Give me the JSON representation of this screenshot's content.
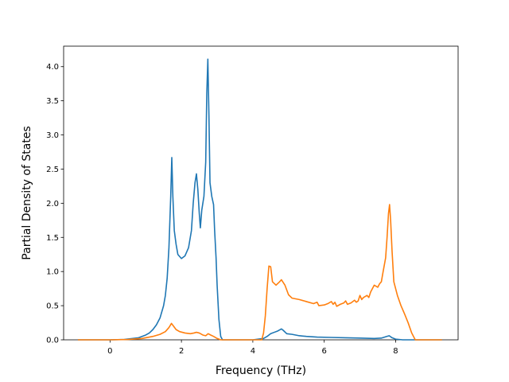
{
  "chart_data": {
    "type": "line",
    "title": "",
    "xlabel": "Frequency (THz)",
    "ylabel": "Partial Density of States",
    "xlim": [
      -1.3,
      9.75
    ],
    "ylim": [
      0,
      4.3
    ],
    "x_ticks": [
      0,
      2,
      4,
      6,
      8
    ],
    "y_ticks": [
      0.0,
      0.5,
      1.0,
      1.5,
      2.0,
      2.5,
      3.0,
      3.5,
      4.0
    ],
    "x_tick_labels": [
      "0",
      "2",
      "4",
      "6",
      "8"
    ],
    "y_tick_labels": [
      "0.0",
      "0.5",
      "1.0",
      "1.5",
      "2.0",
      "2.5",
      "3.0",
      "3.5",
      "4.0"
    ],
    "grid": false,
    "legend": "none",
    "series": [
      {
        "color": "#1f77b4",
        "points": [
          [
            -0.9,
            0
          ],
          [
            0,
            0
          ],
          [
            0.4,
            0.005
          ],
          [
            0.8,
            0.03
          ],
          [
            1.0,
            0.07
          ],
          [
            1.1,
            0.1
          ],
          [
            1.2,
            0.15
          ],
          [
            1.3,
            0.22
          ],
          [
            1.4,
            0.32
          ],
          [
            1.5,
            0.5
          ],
          [
            1.55,
            0.65
          ],
          [
            1.6,
            0.9
          ],
          [
            1.65,
            1.35
          ],
          [
            1.7,
            2.1
          ],
          [
            1.73,
            2.67
          ],
          [
            1.76,
            2.1
          ],
          [
            1.8,
            1.6
          ],
          [
            1.85,
            1.4
          ],
          [
            1.9,
            1.25
          ],
          [
            2.0,
            1.19
          ],
          [
            2.1,
            1.23
          ],
          [
            2.2,
            1.35
          ],
          [
            2.28,
            1.6
          ],
          [
            2.33,
            2.0
          ],
          [
            2.38,
            2.3
          ],
          [
            2.42,
            2.43
          ],
          [
            2.46,
            2.2
          ],
          [
            2.5,
            1.85
          ],
          [
            2.53,
            1.64
          ],
          [
            2.57,
            1.9
          ],
          [
            2.63,
            2.1
          ],
          [
            2.68,
            2.6
          ],
          [
            2.71,
            3.6
          ],
          [
            2.74,
            4.11
          ],
          [
            2.77,
            3.3
          ],
          [
            2.8,
            2.3
          ],
          [
            2.85,
            2.1
          ],
          [
            2.9,
            1.98
          ],
          [
            2.93,
            1.6
          ],
          [
            2.97,
            1.2
          ],
          [
            3.0,
            0.8
          ],
          [
            3.05,
            0.3
          ],
          [
            3.1,
            0.05
          ],
          [
            3.15,
            0
          ],
          [
            4.0,
            0
          ],
          [
            4.3,
            0.02
          ],
          [
            4.4,
            0.05
          ],
          [
            4.5,
            0.09
          ],
          [
            4.6,
            0.11
          ],
          [
            4.7,
            0.13
          ],
          [
            4.8,
            0.16
          ],
          [
            4.85,
            0.14
          ],
          [
            4.95,
            0.09
          ],
          [
            5.1,
            0.08
          ],
          [
            5.3,
            0.06
          ],
          [
            5.5,
            0.05
          ],
          [
            5.8,
            0.04
          ],
          [
            6.2,
            0.035
          ],
          [
            6.6,
            0.03
          ],
          [
            7.0,
            0.025
          ],
          [
            7.4,
            0.02
          ],
          [
            7.6,
            0.025
          ],
          [
            7.75,
            0.05
          ],
          [
            7.82,
            0.06
          ],
          [
            7.9,
            0.03
          ],
          [
            8.0,
            0.01
          ],
          [
            8.2,
            0
          ],
          [
            8.5,
            0
          ],
          [
            9.3,
            0
          ]
        ]
      },
      {
        "color": "#ff7f0e",
        "points": [
          [
            -0.9,
            0
          ],
          [
            0,
            0
          ],
          [
            0.5,
            0.005
          ],
          [
            0.9,
            0.02
          ],
          [
            1.2,
            0.05
          ],
          [
            1.4,
            0.08
          ],
          [
            1.55,
            0.12
          ],
          [
            1.65,
            0.18
          ],
          [
            1.72,
            0.24
          ],
          [
            1.78,
            0.2
          ],
          [
            1.85,
            0.15
          ],
          [
            1.95,
            0.12
          ],
          [
            2.1,
            0.1
          ],
          [
            2.25,
            0.09
          ],
          [
            2.35,
            0.1
          ],
          [
            2.42,
            0.11
          ],
          [
            2.5,
            0.1
          ],
          [
            2.6,
            0.07
          ],
          [
            2.68,
            0.06
          ],
          [
            2.75,
            0.09
          ],
          [
            2.82,
            0.07
          ],
          [
            2.9,
            0.05
          ],
          [
            3.0,
            0.02
          ],
          [
            3.1,
            0
          ],
          [
            4.25,
            0
          ],
          [
            4.3,
            0.1
          ],
          [
            4.35,
            0.35
          ],
          [
            4.4,
            0.75
          ],
          [
            4.45,
            1.08
          ],
          [
            4.5,
            1.07
          ],
          [
            4.55,
            0.85
          ],
          [
            4.65,
            0.8
          ],
          [
            4.75,
            0.85
          ],
          [
            4.8,
            0.88
          ],
          [
            4.9,
            0.8
          ],
          [
            5.0,
            0.66
          ],
          [
            5.1,
            0.61
          ],
          [
            5.3,
            0.59
          ],
          [
            5.5,
            0.56
          ],
          [
            5.7,
            0.53
          ],
          [
            5.8,
            0.55
          ],
          [
            5.85,
            0.5
          ],
          [
            6.0,
            0.51
          ],
          [
            6.1,
            0.53
          ],
          [
            6.2,
            0.56
          ],
          [
            6.25,
            0.52
          ],
          [
            6.3,
            0.55
          ],
          [
            6.35,
            0.49
          ],
          [
            6.45,
            0.52
          ],
          [
            6.55,
            0.54
          ],
          [
            6.6,
            0.57
          ],
          [
            6.65,
            0.52
          ],
          [
            6.75,
            0.54
          ],
          [
            6.85,
            0.58
          ],
          [
            6.9,
            0.55
          ],
          [
            6.95,
            0.57
          ],
          [
            7.0,
            0.65
          ],
          [
            7.05,
            0.59
          ],
          [
            7.1,
            0.62
          ],
          [
            7.2,
            0.65
          ],
          [
            7.25,
            0.62
          ],
          [
            7.3,
            0.7
          ],
          [
            7.4,
            0.8
          ],
          [
            7.5,
            0.77
          ],
          [
            7.55,
            0.82
          ],
          [
            7.6,
            0.85
          ],
          [
            7.65,
            1.0
          ],
          [
            7.72,
            1.2
          ],
          [
            7.76,
            1.5
          ],
          [
            7.8,
            1.85
          ],
          [
            7.83,
            1.98
          ],
          [
            7.86,
            1.75
          ],
          [
            7.9,
            1.3
          ],
          [
            7.95,
            0.85
          ],
          [
            8.05,
            0.65
          ],
          [
            8.15,
            0.5
          ],
          [
            8.25,
            0.38
          ],
          [
            8.35,
            0.25
          ],
          [
            8.45,
            0.1
          ],
          [
            8.55,
            0
          ],
          [
            9.3,
            0
          ]
        ]
      }
    ]
  }
}
